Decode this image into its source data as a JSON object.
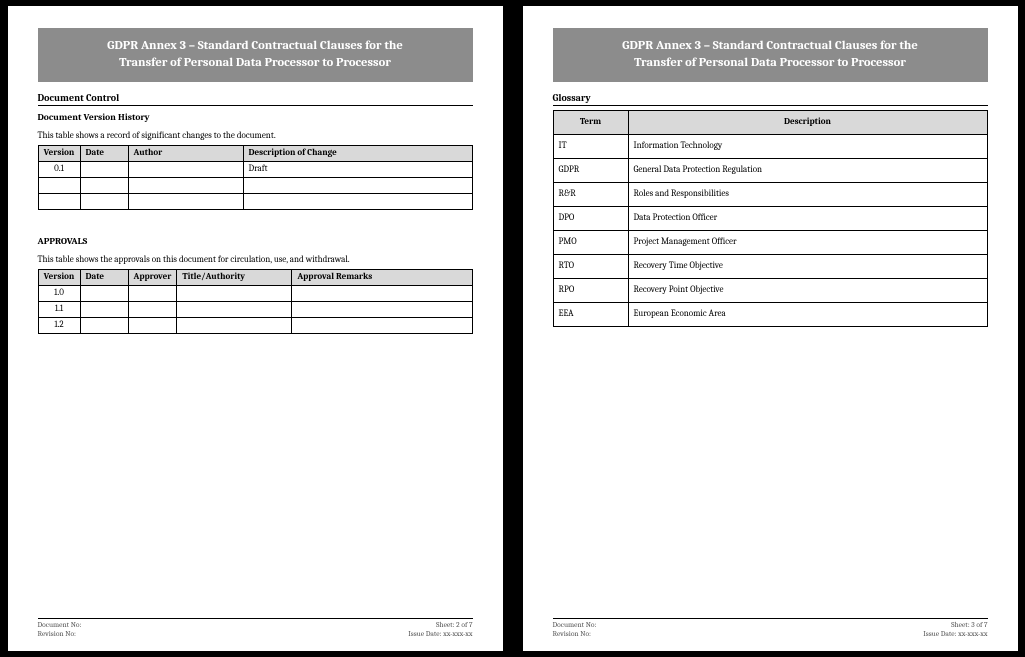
{
  "banner": {
    "line1": "GDPR Annex 3 – Standard Contractual Clauses for the",
    "line2": "Transfer of Personal Data Processor to Processor"
  },
  "page_left": {
    "doc_control": "Document Control",
    "version_history_heading": "Document Version History",
    "version_history_caption": "This table shows a record of significant changes to the document.",
    "vh_cols": {
      "version": "Version",
      "date": "Date",
      "author": "Author",
      "desc": "Description of Change"
    },
    "vh_rows": [
      {
        "version": "0.1",
        "date": "",
        "author": "",
        "desc": "Draft"
      },
      {
        "version": "",
        "date": "",
        "author": "",
        "desc": ""
      },
      {
        "version": "",
        "date": "",
        "author": "",
        "desc": ""
      }
    ],
    "approvals_heading": "APPROVALS",
    "approvals_caption": "This table shows the approvals on this document for circulation, use, and withdrawal.",
    "ap_cols": {
      "version": "Version",
      "date": "Date",
      "approver": "Approver",
      "title": "Title/Authority",
      "remarks": "Approval Remarks"
    },
    "ap_rows": [
      {
        "version": "1.0",
        "date": "",
        "approver": "",
        "title": "",
        "remarks": ""
      },
      {
        "version": "1.1",
        "date": "",
        "approver": "",
        "title": "",
        "remarks": ""
      },
      {
        "version": "1.2",
        "date": "",
        "approver": "",
        "title": "",
        "remarks": ""
      }
    ],
    "footer": {
      "doc_no": "Document No:",
      "rev_no": "Revision No:",
      "sheet": "Sheet: 2 of 7",
      "issue": "Issue Date: xx-xxx-xx"
    }
  },
  "page_right": {
    "glossary_heading": "Glossary",
    "gl_cols": {
      "term": "Term",
      "desc": "Description"
    },
    "gl_rows": [
      {
        "term": "IT",
        "desc": "Information Technology"
      },
      {
        "term": "GDPR",
        "desc": "General Data Protection Regulation"
      },
      {
        "term": "R&R",
        "desc": "Roles and Responsibilities"
      },
      {
        "term": "DPO",
        "desc": "Data Protection Officer"
      },
      {
        "term": "PMO",
        "desc": "Project Management Officer"
      },
      {
        "term": "RTO",
        "desc": "Recovery Time Objective"
      },
      {
        "term": "RPO",
        "desc": "Recovery Point Objective"
      },
      {
        "term": "EEA",
        "desc": "European Economic Area"
      }
    ],
    "footer": {
      "doc_no": "Document No:",
      "rev_no": "Revision No:",
      "sheet": "Sheet: 3 of 7",
      "issue": "Issue Date: xx-xxx-xx"
    }
  }
}
